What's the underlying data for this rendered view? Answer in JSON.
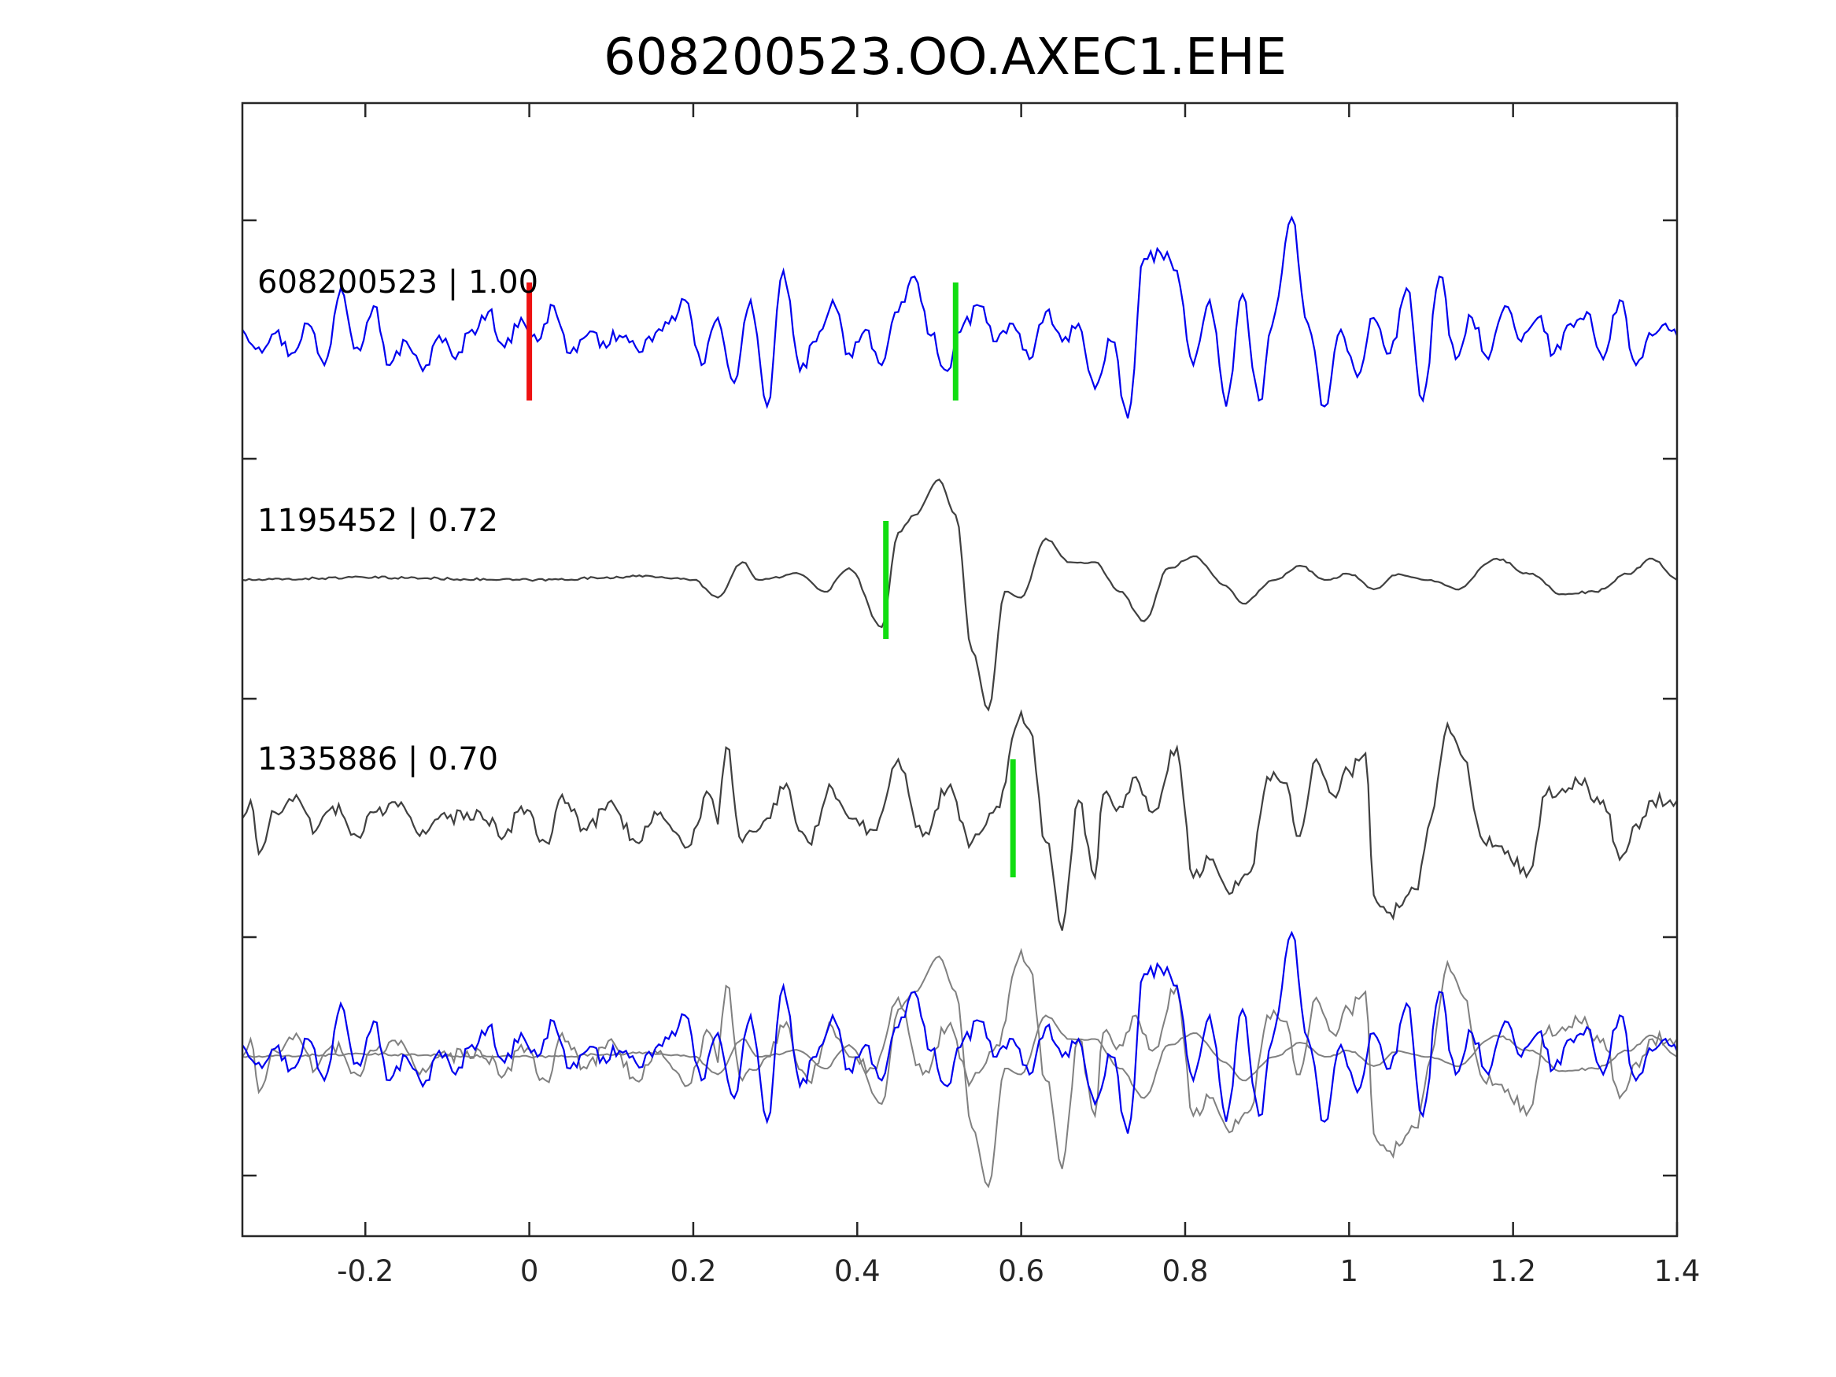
{
  "chart_data": {
    "type": "line",
    "title": "608200523.OO.AXEC1.EHE",
    "xlabel": "",
    "ylabel": "",
    "xlim": [
      -0.35,
      1.4
    ],
    "xticks": [
      "-0.2",
      "0",
      "0.2",
      "0.4",
      "0.6",
      "0.8",
      "1",
      "1.2",
      "1.4"
    ],
    "xtick_values": [
      -0.2,
      0,
      0.2,
      0.4,
      0.6,
      0.8,
      1.0,
      1.2,
      1.4
    ],
    "yticks_shown": false,
    "grid": false,
    "colors": {
      "reference": "#0000ee",
      "template": "#404040",
      "overlay_template": "#808080",
      "reference_pick": "#ee1111",
      "matched_pick": "#11dd11",
      "axis": "#262626"
    },
    "traces": [
      {
        "label": "608200523 | 1.00",
        "event_id": "608200523",
        "correlation": 1.0,
        "color": "#0000ee",
        "picks": [
          {
            "t": 0.0,
            "color": "#ee1111"
          },
          {
            "t": 0.52,
            "color": "#11dd11"
          }
        ],
        "peaks": [
          [
            -0.35,
            0.1
          ],
          [
            -0.33,
            -0.05
          ],
          [
            -0.31,
            0.07
          ],
          [
            -0.29,
            -0.1
          ],
          [
            -0.27,
            0.15
          ],
          [
            -0.25,
            -0.2
          ],
          [
            -0.23,
            0.45
          ],
          [
            -0.21,
            -0.05
          ],
          [
            -0.19,
            0.3
          ],
          [
            -0.17,
            -0.2
          ],
          [
            -0.15,
            0.0
          ],
          [
            -0.13,
            -0.25
          ],
          [
            -0.11,
            0.05
          ],
          [
            -0.09,
            -0.15
          ],
          [
            -0.07,
            0.1
          ],
          [
            -0.05,
            0.25
          ],
          [
            -0.03,
            -0.05
          ],
          [
            -0.01,
            0.2
          ],
          [
            0.01,
            0.0
          ],
          [
            0.03,
            0.3
          ],
          [
            0.05,
            -0.1
          ],
          [
            0.07,
            0.05
          ],
          [
            0.09,
            0.0
          ],
          [
            0.11,
            0.05
          ],
          [
            0.13,
            -0.05
          ],
          [
            0.15,
            0.0
          ],
          [
            0.17,
            0.15
          ],
          [
            0.19,
            0.35
          ],
          [
            0.21,
            -0.2
          ],
          [
            0.23,
            0.2
          ],
          [
            0.25,
            -0.35
          ],
          [
            0.27,
            0.35
          ],
          [
            0.29,
            -0.55
          ],
          [
            0.31,
            0.6
          ],
          [
            0.33,
            -0.25
          ],
          [
            0.35,
            0.0
          ],
          [
            0.37,
            0.35
          ],
          [
            0.39,
            -0.1
          ],
          [
            0.41,
            0.1
          ],
          [
            0.43,
            -0.2
          ],
          [
            0.45,
            0.25
          ],
          [
            0.47,
            0.55
          ],
          [
            0.49,
            0.05
          ],
          [
            0.51,
            -0.25
          ],
          [
            0.53,
            0.15
          ],
          [
            0.55,
            0.3
          ],
          [
            0.57,
            0.0
          ],
          [
            0.59,
            0.15
          ],
          [
            0.61,
            -0.15
          ],
          [
            0.63,
            0.25
          ],
          [
            0.65,
            0.0
          ],
          [
            0.67,
            0.15
          ],
          [
            0.69,
            -0.4
          ],
          [
            0.71,
            0.0
          ],
          [
            0.73,
            -0.65
          ],
          [
            0.75,
            0.7
          ],
          [
            0.77,
            0.75
          ],
          [
            0.79,
            0.6
          ],
          [
            0.81,
            -0.2
          ],
          [
            0.83,
            0.35
          ],
          [
            0.85,
            -0.55
          ],
          [
            0.87,
            0.4
          ],
          [
            0.89,
            -0.5
          ],
          [
            0.91,
            0.25
          ],
          [
            0.93,
            1.05
          ],
          [
            0.95,
            0.15
          ],
          [
            0.97,
            -0.55
          ],
          [
            0.99,
            0.1
          ],
          [
            1.01,
            -0.3
          ],
          [
            1.03,
            0.2
          ],
          [
            1.05,
            -0.1
          ],
          [
            1.07,
            0.45
          ],
          [
            1.09,
            -0.5
          ],
          [
            1.11,
            0.55
          ],
          [
            1.13,
            -0.15
          ],
          [
            1.15,
            0.2
          ],
          [
            1.17,
            -0.15
          ],
          [
            1.19,
            0.3
          ],
          [
            1.21,
            0.0
          ],
          [
            1.23,
            0.2
          ],
          [
            1.25,
            -0.1
          ],
          [
            1.27,
            0.15
          ],
          [
            1.29,
            0.25
          ],
          [
            1.31,
            -0.15
          ],
          [
            1.33,
            0.35
          ],
          [
            1.35,
            -0.2
          ],
          [
            1.37,
            0.05
          ],
          [
            1.39,
            0.1
          ],
          [
            1.4,
            0.05
          ]
        ]
      },
      {
        "label": "1195452 | 0.72",
        "event_id": "1195452",
        "correlation": 0.72,
        "color": "#404040",
        "picks": [
          {
            "t": 0.435,
            "color": "#11dd11"
          }
        ],
        "peaks": [
          [
            -0.35,
            0.0
          ],
          [
            -0.2,
            0.02
          ],
          [
            0.0,
            0.0
          ],
          [
            0.15,
            0.03
          ],
          [
            0.2,
            0.0
          ],
          [
            0.23,
            -0.15
          ],
          [
            0.26,
            0.15
          ],
          [
            0.28,
            0.0
          ],
          [
            0.33,
            0.05
          ],
          [
            0.36,
            -0.1
          ],
          [
            0.39,
            0.1
          ],
          [
            0.43,
            -0.4
          ],
          [
            0.45,
            0.4
          ],
          [
            0.47,
            0.55
          ],
          [
            0.5,
            0.85
          ],
          [
            0.52,
            0.55
          ],
          [
            0.54,
            -0.6
          ],
          [
            0.56,
            -1.1
          ],
          [
            0.58,
            -0.1
          ],
          [
            0.6,
            -0.15
          ],
          [
            0.63,
            0.35
          ],
          [
            0.66,
            0.15
          ],
          [
            0.69,
            0.15
          ],
          [
            0.72,
            -0.1
          ],
          [
            0.75,
            -0.35
          ],
          [
            0.78,
            0.1
          ],
          [
            0.81,
            0.2
          ],
          [
            0.85,
            -0.05
          ],
          [
            0.87,
            -0.2
          ],
          [
            0.91,
            0.0
          ],
          [
            0.94,
            0.12
          ],
          [
            0.97,
            0.0
          ],
          [
            1.0,
            0.05
          ],
          [
            1.03,
            -0.08
          ],
          [
            1.06,
            0.05
          ],
          [
            1.1,
            0.0
          ],
          [
            1.13,
            -0.08
          ],
          [
            1.18,
            0.18
          ],
          [
            1.22,
            0.05
          ],
          [
            1.26,
            -0.12
          ],
          [
            1.3,
            -0.1
          ],
          [
            1.34,
            0.05
          ],
          [
            1.37,
            0.18
          ],
          [
            1.4,
            0.0
          ]
        ]
      },
      {
        "label": "1335886 | 0.70",
        "event_id": "1335886",
        "correlation": 0.7,
        "color": "#404040",
        "picks": [
          {
            "t": 0.59,
            "color": "#11dd11"
          }
        ],
        "peaks": [
          [
            -0.35,
            0.0
          ],
          [
            -0.34,
            0.15
          ],
          [
            -0.33,
            -0.3
          ],
          [
            -0.31,
            0.05
          ],
          [
            -0.28,
            0.15
          ],
          [
            -0.26,
            -0.1
          ],
          [
            -0.24,
            0.1
          ],
          [
            -0.21,
            -0.15
          ],
          [
            -0.19,
            0.05
          ],
          [
            -0.16,
            0.1
          ],
          [
            -0.13,
            -0.1
          ],
          [
            -0.1,
            0.0
          ],
          [
            -0.06,
            0.05
          ],
          [
            -0.03,
            -0.15
          ],
          [
            -0.01,
            0.1
          ],
          [
            0.02,
            -0.2
          ],
          [
            0.04,
            0.2
          ],
          [
            0.07,
            -0.1
          ],
          [
            0.1,
            0.15
          ],
          [
            0.13,
            -0.2
          ],
          [
            0.16,
            0.05
          ],
          [
            0.19,
            -0.25
          ],
          [
            0.22,
            0.2
          ],
          [
            0.23,
            -0.05
          ],
          [
            0.24,
            0.6
          ],
          [
            0.26,
            -0.2
          ],
          [
            0.29,
            0.0
          ],
          [
            0.31,
            0.25
          ],
          [
            0.34,
            -0.2
          ],
          [
            0.37,
            0.25
          ],
          [
            0.39,
            0.0
          ],
          [
            0.42,
            -0.1
          ],
          [
            0.45,
            0.5
          ],
          [
            0.48,
            -0.15
          ],
          [
            0.51,
            0.25
          ],
          [
            0.54,
            -0.2
          ],
          [
            0.57,
            0.1
          ],
          [
            0.6,
            0.9
          ],
          [
            0.61,
            0.75
          ],
          [
            0.63,
            -0.2
          ],
          [
            0.65,
            -0.95
          ],
          [
            0.67,
            0.15
          ],
          [
            0.69,
            -0.5
          ],
          [
            0.7,
            0.2
          ],
          [
            0.72,
            0.1
          ],
          [
            0.74,
            0.35
          ],
          [
            0.76,
            0.05
          ],
          [
            0.79,
            0.6
          ],
          [
            0.81,
            -0.5
          ],
          [
            0.83,
            -0.35
          ],
          [
            0.85,
            -0.6
          ],
          [
            0.88,
            -0.45
          ],
          [
            0.9,
            0.35
          ],
          [
            0.92,
            0.3
          ],
          [
            0.94,
            -0.15
          ],
          [
            0.96,
            0.5
          ],
          [
            0.98,
            0.2
          ],
          [
            1.0,
            0.4
          ],
          [
            1.02,
            0.55
          ],
          [
            1.03,
            -0.65
          ],
          [
            1.05,
            -0.8
          ],
          [
            1.08,
            -0.6
          ],
          [
            1.1,
            0.0
          ],
          [
            1.12,
            0.8
          ],
          [
            1.14,
            0.5
          ],
          [
            1.16,
            -0.15
          ],
          [
            1.19,
            -0.3
          ],
          [
            1.22,
            -0.45
          ],
          [
            1.24,
            0.2
          ],
          [
            1.26,
            0.25
          ],
          [
            1.28,
            0.3
          ],
          [
            1.31,
            0.15
          ],
          [
            1.33,
            -0.35
          ],
          [
            1.35,
            -0.05
          ],
          [
            1.37,
            0.15
          ],
          [
            1.4,
            0.15
          ]
        ]
      }
    ],
    "overlay": {
      "description_index": 3,
      "traces_drawn": [
        "608200523",
        "1195452",
        "1335886"
      ],
      "aligned_on_picks": true
    }
  }
}
